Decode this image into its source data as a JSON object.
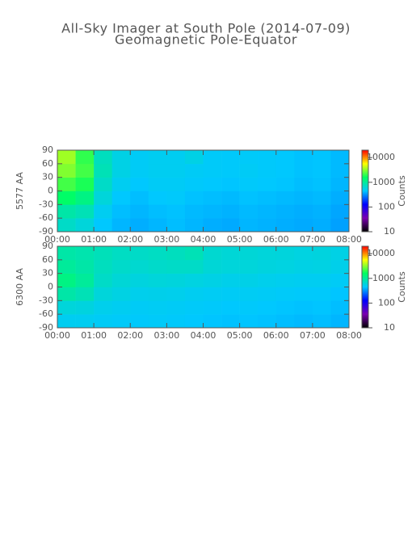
{
  "title": "All-Sky Imager at South Pole (2014-07-09)",
  "subtitle": "Geomagnetic Pole-Equator",
  "chart_data": [
    {
      "type": "heatmap",
      "ylabel": "5577 AA",
      "xbins": [
        0,
        0.5,
        1,
        1.5,
        2,
        2.5,
        3,
        3.5,
        4,
        4.5,
        5,
        5.5,
        6,
        6.5,
        7,
        7.5,
        8
      ],
      "ybins": [
        -90,
        -60,
        -30,
        0,
        30,
        60,
        90
      ],
      "z": [
        [
          700,
          600,
          450,
          400,
          380,
          400,
          420,
          400,
          380,
          370,
          400,
          390,
          380,
          370,
          380,
          350
        ],
        [
          900,
          800,
          500,
          420,
          400,
          420,
          430,
          410,
          400,
          390,
          410,
          400,
          390,
          380,
          390,
          360
        ],
        [
          1500,
          1200,
          600,
          450,
          420,
          450,
          460,
          430,
          420,
          410,
          430,
          420,
          410,
          400,
          410,
          380
        ],
        [
          2200,
          1800,
          700,
          500,
          450,
          480,
          480,
          460,
          450,
          440,
          460,
          450,
          440,
          420,
          430,
          400
        ],
        [
          3000,
          2200,
          800,
          550,
          480,
          500,
          500,
          480,
          470,
          460,
          480,
          460,
          450,
          430,
          440,
          410
        ],
        [
          3500,
          2000,
          750,
          550,
          480,
          500,
          500,
          550,
          470,
          460,
          470,
          460,
          450,
          430,
          440,
          410
        ]
      ],
      "xlim": [
        0,
        8
      ],
      "xticks": [
        {
          "value": 0,
          "label": "00:00"
        },
        {
          "value": 1,
          "label": "01:00"
        },
        {
          "value": 2,
          "label": "02:00"
        },
        {
          "value": 3,
          "label": "03:00"
        },
        {
          "value": 4,
          "label": "04:00"
        },
        {
          "value": 5,
          "label": "05:00"
        },
        {
          "value": 6,
          "label": "06:00"
        },
        {
          "value": 7,
          "label": "07:00"
        },
        {
          "value": 8,
          "label": "08:00"
        }
      ],
      "ylim": [
        -90,
        90
      ],
      "yticks": [
        -90,
        -60,
        -30,
        0,
        30,
        60,
        90
      ],
      "colorbar": {
        "label": "Counts",
        "log": true,
        "lim": [
          10,
          20000
        ],
        "ticks": [
          10,
          100,
          1000,
          10000
        ],
        "colors": [
          "#000000",
          "#7a00b0",
          "#0000ff",
          "#00c8ff",
          "#00ff60",
          "#ffff00",
          "#ff0000"
        ]
      }
    },
    {
      "type": "heatmap",
      "ylabel": "6300 AA",
      "xbins": [
        0,
        0.5,
        1,
        1.5,
        2,
        2.5,
        3,
        3.5,
        4,
        4.5,
        5,
        5.5,
        6,
        6.5,
        7,
        7.5,
        8
      ],
      "ybins": [
        -90,
        -60,
        -30,
        0,
        30,
        60,
        90
      ],
      "z": [
        [
          500,
          500,
          480,
          470,
          460,
          470,
          460,
          450,
          440,
          430,
          440,
          430,
          420,
          410,
          420,
          400
        ],
        [
          600,
          580,
          520,
          500,
          480,
          490,
          480,
          470,
          460,
          450,
          460,
          450,
          440,
          430,
          440,
          420
        ],
        [
          900,
          800,
          600,
          560,
          520,
          530,
          520,
          500,
          490,
          480,
          490,
          480,
          470,
          460,
          460,
          440
        ],
        [
          1200,
          1000,
          700,
          620,
          580,
          600,
          590,
          570,
          550,
          530,
          540,
          520,
          510,
          500,
          500,
          480
        ],
        [
          1000,
          900,
          750,
          680,
          650,
          680,
          700,
          700,
          620,
          600,
          600,
          580,
          570,
          550,
          560,
          530
        ],
        [
          900,
          850,
          780,
          720,
          700,
          720,
          750,
          800,
          650,
          620,
          620,
          600,
          590,
          570,
          580,
          550
        ]
      ],
      "xlim": [
        0,
        8
      ],
      "xticks": [
        {
          "value": 0,
          "label": "00:00"
        },
        {
          "value": 1,
          "label": "01:00"
        },
        {
          "value": 2,
          "label": "02:00"
        },
        {
          "value": 3,
          "label": "03:00"
        },
        {
          "value": 4,
          "label": "04:00"
        },
        {
          "value": 5,
          "label": "05:00"
        },
        {
          "value": 6,
          "label": "06:00"
        },
        {
          "value": 7,
          "label": "07:00"
        },
        {
          "value": 8,
          "label": "08:00"
        }
      ],
      "ylim": [
        -90,
        90
      ],
      "yticks": [
        -90,
        -60,
        -30,
        0,
        30,
        60,
        90
      ],
      "colorbar": {
        "label": "Counts",
        "log": true,
        "lim": [
          10,
          20000
        ],
        "ticks": [
          10,
          100,
          1000,
          10000
        ],
        "colors": [
          "#000000",
          "#7a00b0",
          "#0000ff",
          "#00c8ff",
          "#00ff60",
          "#ffff00",
          "#ff0000"
        ]
      }
    }
  ]
}
